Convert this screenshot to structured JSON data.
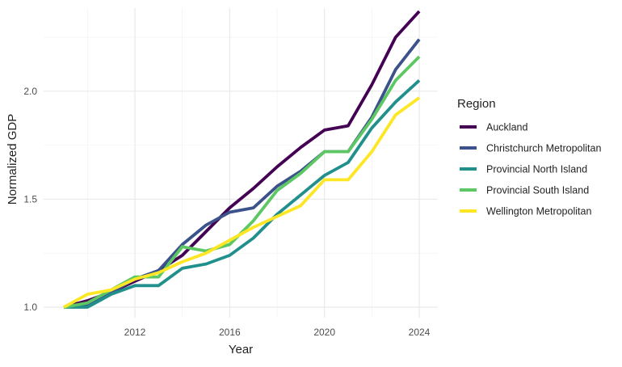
{
  "chart_data": {
    "type": "line",
    "xlabel": "Year",
    "ylabel": "Normalized GDP",
    "xlim": [
      2009,
      2024
    ],
    "ylim": [
      1.0,
      2.37
    ],
    "x_ticks": [
      2012,
      2016,
      2020,
      2024
    ],
    "y_ticks": [
      1.0,
      1.5,
      2.0
    ],
    "x_tick_labels": [
      "2012",
      "2016",
      "2020",
      "2024"
    ],
    "y_tick_labels": [
      "1.0",
      "1.5",
      "2.0"
    ],
    "x": [
      2009,
      2010,
      2011,
      2012,
      2013,
      2014,
      2015,
      2016,
      2017,
      2018,
      2019,
      2020,
      2021,
      2022,
      2023,
      2024
    ],
    "grid": true,
    "legend": {
      "title": "Region",
      "position": "right"
    },
    "series": [
      {
        "name": "Auckland",
        "color": "#440154",
        "values": [
          1.0,
          1.03,
          1.07,
          1.12,
          1.17,
          1.24,
          1.35,
          1.46,
          1.55,
          1.65,
          1.74,
          1.82,
          1.84,
          2.03,
          2.25,
          2.37
        ]
      },
      {
        "name": "Christchurch Metropolitan",
        "color": "#3B528B",
        "values": [
          1.0,
          1.01,
          1.07,
          1.13,
          1.17,
          1.29,
          1.38,
          1.44,
          1.46,
          1.56,
          1.63,
          1.72,
          1.72,
          1.88,
          2.1,
          2.24
        ]
      },
      {
        "name": "Provincial North Island",
        "color": "#21908C",
        "values": [
          1.0,
          1.0,
          1.06,
          1.1,
          1.1,
          1.18,
          1.2,
          1.24,
          1.32,
          1.43,
          1.52,
          1.61,
          1.67,
          1.83,
          1.95,
          2.05
        ]
      },
      {
        "name": "Provincial South Island",
        "color": "#5DC863",
        "values": [
          1.0,
          1.02,
          1.08,
          1.14,
          1.14,
          1.28,
          1.26,
          1.29,
          1.4,
          1.54,
          1.62,
          1.72,
          1.72,
          1.87,
          2.05,
          2.16
        ]
      },
      {
        "name": "Wellington Metropolitan",
        "color": "#FDE725",
        "values": [
          1.0,
          1.06,
          1.08,
          1.13,
          1.16,
          1.21,
          1.25,
          1.31,
          1.37,
          1.42,
          1.47,
          1.59,
          1.59,
          1.72,
          1.89,
          1.97
        ]
      }
    ]
  }
}
